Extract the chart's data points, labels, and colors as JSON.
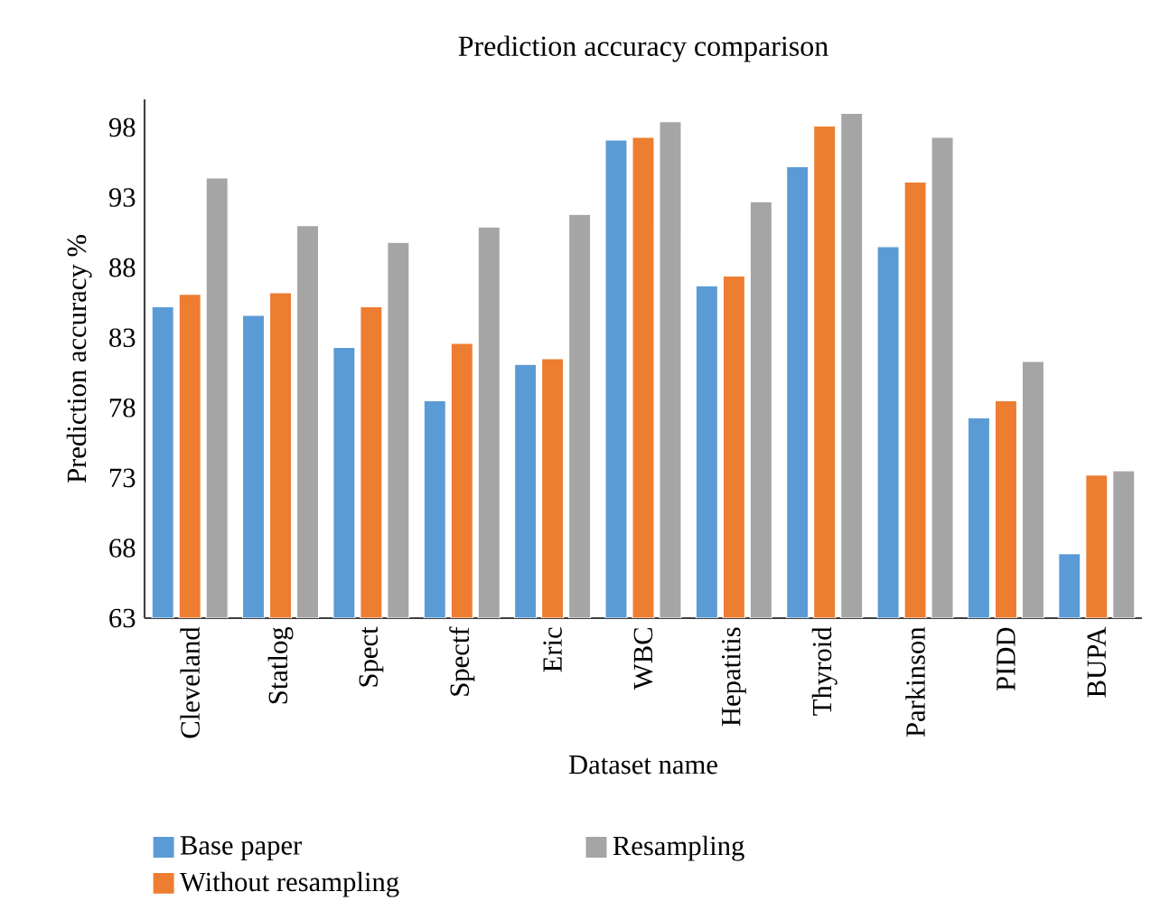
{
  "chart_data": {
    "type": "bar",
    "title": "Prediction accuracy comparison",
    "xlabel": "Dataset name",
    "ylabel": "Prediction accuracy %",
    "categories": [
      "Cleveland",
      "Statlog",
      "Spect",
      "Spectf",
      "Eric",
      "WBC",
      "Hepatitis",
      "Thyroid",
      "Parkinson",
      "PIDD",
      "BUPA"
    ],
    "series": [
      {
        "name": "Base paper",
        "color": "#5b9bd5",
        "values": [
          85.2,
          84.6,
          82.3,
          78.5,
          81.1,
          97.1,
          86.7,
          95.2,
          89.5,
          77.3,
          67.6
        ]
      },
      {
        "name": "Without resampling",
        "color": "#ed7d31",
        "values": [
          86.1,
          86.2,
          85.2,
          82.6,
          81.5,
          97.3,
          87.4,
          98.1,
          94.1,
          78.5,
          73.2
        ]
      },
      {
        "name": "Resampling",
        "color": "#a5a5a5",
        "values": [
          94.4,
          91.0,
          89.8,
          90.9,
          91.8,
          98.4,
          92.7,
          99.0,
          97.3,
          81.3,
          73.5
        ]
      }
    ],
    "ylim": [
      63,
      100
    ],
    "yticks": [
      63,
      68,
      73,
      78,
      83,
      88,
      93,
      98
    ],
    "grid": false,
    "legend": "bottom"
  }
}
